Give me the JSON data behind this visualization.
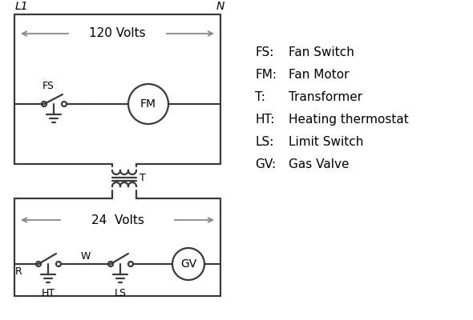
{
  "background": "#ffffff",
  "line_color": "#3a3a3a",
  "arrow_color": "#888888",
  "line_width": 1.6,
  "legend_items": [
    [
      "FS:",
      "Fan Switch"
    ],
    [
      "FM:",
      "Fan Motor"
    ],
    [
      "T:",
      "Transformer"
    ],
    [
      "HT:",
      "Heating thermostat"
    ],
    [
      "LS:",
      "Limit Switch"
    ],
    [
      "GV:",
      "Gas Valve"
    ]
  ],
  "label_L1": "L1",
  "label_N": "N",
  "label_120": "120 Volts",
  "label_24": "24  Volts",
  "label_T": "T",
  "label_FS": "FS",
  "label_FM": "FM",
  "label_GV": "GV",
  "label_R": "R",
  "label_W": "W",
  "label_HT": "HT",
  "label_LS": "LS"
}
